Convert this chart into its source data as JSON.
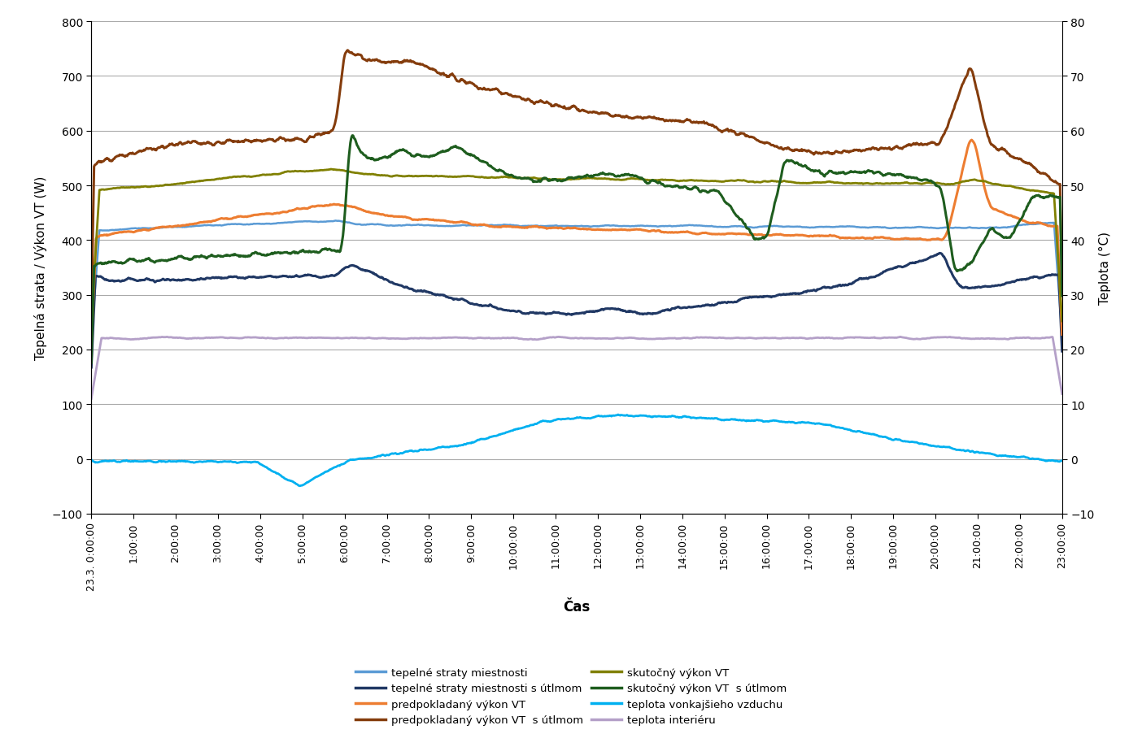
{
  "title": "",
  "xlabel": "Čas",
  "ylabel_left": "Tepelná strata / Výkon VT (W)",
  "ylabel_right": "Teplota (°C)",
  "ylim_left": [
    -100,
    800
  ],
  "ylim_right": [
    -10,
    80
  ],
  "yticks_left": [
    -100,
    0,
    100,
    200,
    300,
    400,
    500,
    600,
    700,
    800
  ],
  "yticks_right": [
    -10,
    0,
    10,
    20,
    30,
    40,
    50,
    60,
    70,
    80
  ],
  "x_labels": [
    "23.3. 0:00:00",
    "1:00:00",
    "2:00:00",
    "3:00:00",
    "4:00:00",
    "5:00:00",
    "6:00:00",
    "7:00:00",
    "8:00:00",
    "9:00:00",
    "10:00:00",
    "11:00:00",
    "12:00:00",
    "13:00:00",
    "14:00:00",
    "15:00:00",
    "16:00:00",
    "17:00:00",
    "18:00:00",
    "19:00:00",
    "20:00:00",
    "21:00:00",
    "22:00:00",
    "23:00:00"
  ],
  "colors": {
    "tepelne_straty": "#5B9BD5",
    "tepelne_straty_utlm": "#203864",
    "predpokladany_vykon": "#ED7D31",
    "predpokladany_vykon_utlm": "#843C0C",
    "skutocny_vykon": "#808000",
    "skutocny_vykon_utlm": "#1E5D1E",
    "teplota_vonk": "#00B0F0",
    "teplota_int": "#B4A0C8"
  },
  "legend_left": [
    "tepelné straty miestnosti",
    "predpokladaný výkon VT",
    "skutočný výkon VT",
    "teplota vonkajšieho vzduchu"
  ],
  "legend_right": [
    "tepelné straty miestnosti s útlmom",
    "predpokladaný výkon VT  s útlmom",
    "skutočný výkon VT  s útlmom",
    "teplota interiéru"
  ]
}
